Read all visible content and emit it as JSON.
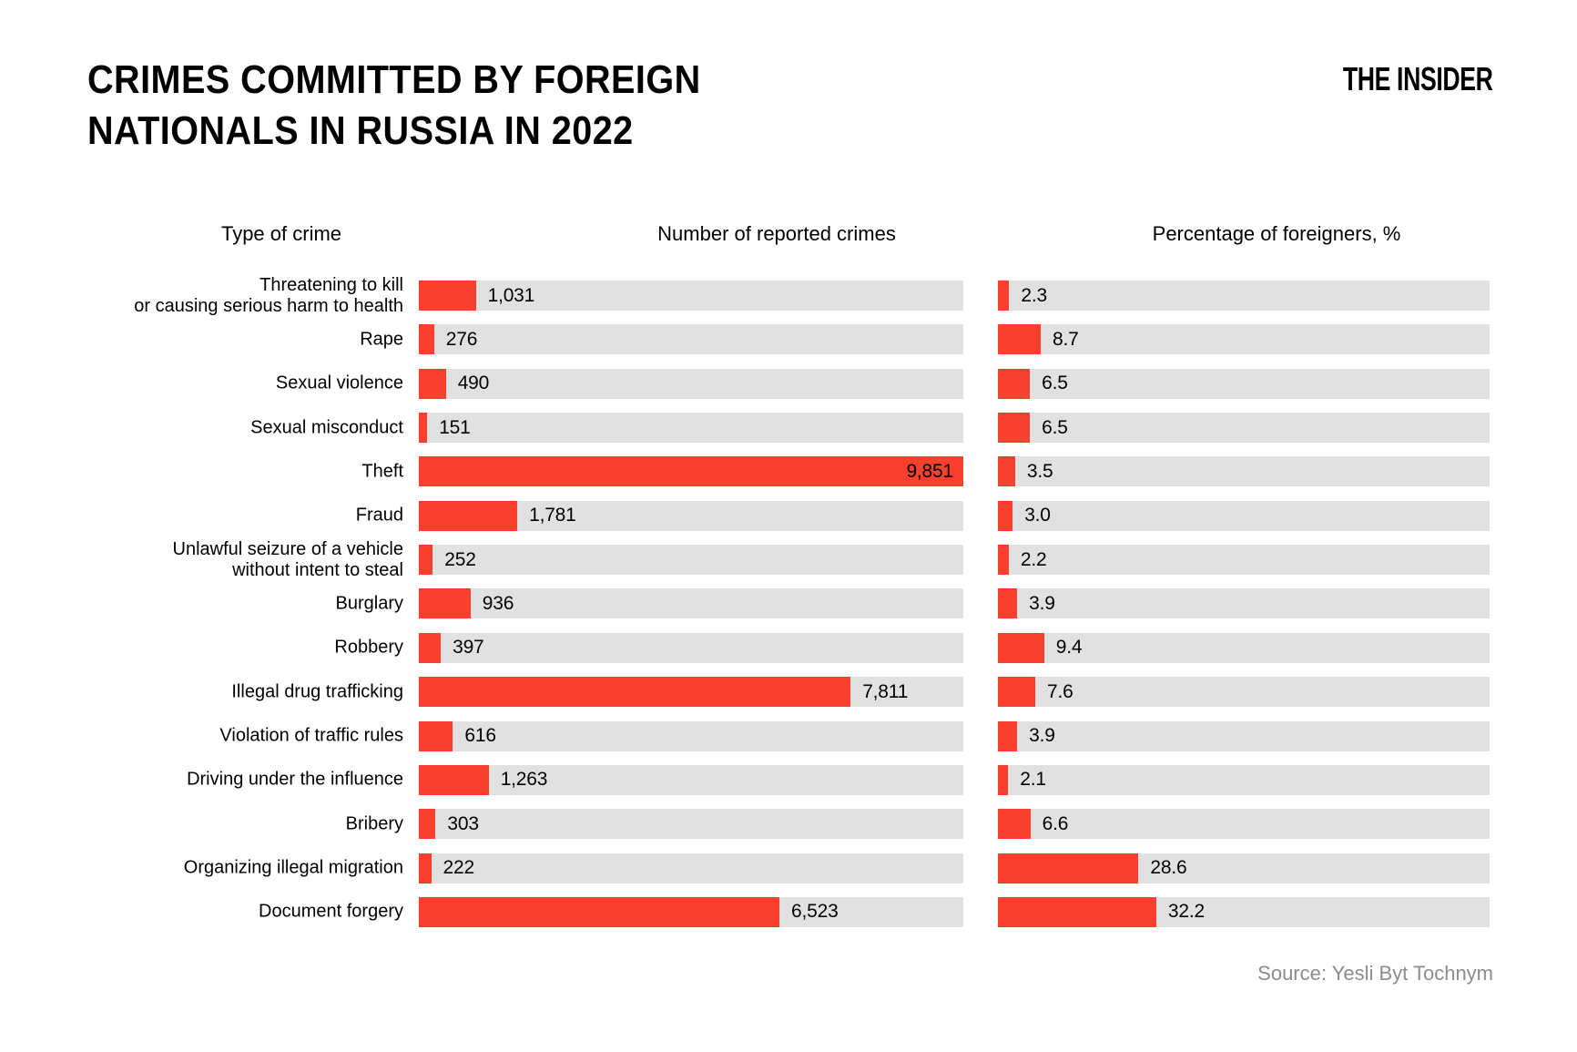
{
  "header": {
    "title_line1": "CRIMES COMMITTED BY FOREIGN",
    "title_line2": "NATIONALS IN RUSSIA IN 2022",
    "logo": "THE INSIDER"
  },
  "columns": {
    "crime_type": "Type of crime",
    "reported": "Number of reported crimes",
    "percentage": "Percentage of foreigners, %"
  },
  "source": "Source: Yesli Byt Tochnym",
  "colors": {
    "bar": "#F9402F",
    "track": "#E1E1E1",
    "text": "#000000",
    "source_text": "#8C8C8C"
  },
  "chart_data": {
    "type": "bar",
    "orientation": "horizontal",
    "title": "Crimes committed by foreign nationals in Russia in 2022",
    "grid": false,
    "legend": "none",
    "categories": [
      "Threatening to kill\nor causing serious harm to health",
      "Rape",
      "Sexual violence",
      "Sexual misconduct",
      "Theft",
      "Fraud",
      "Unlawful seizure of a vehicle\nwithout intent to steal",
      "Burglary",
      "Robbery",
      "Illegal drug trafficking",
      "Violation of traffic rules",
      "Driving under the influence",
      "Bribery",
      "Organizing illegal migration",
      "Document forgery"
    ],
    "series": [
      {
        "name": "Number of reported crimes",
        "axis_max": 9851,
        "values": [
          1031,
          276,
          490,
          151,
          9851,
          1781,
          252,
          936,
          397,
          7811,
          616,
          1263,
          303,
          222,
          6523
        ],
        "labels": [
          "1,031",
          "276",
          "490",
          "151",
          "9,851",
          "1,781",
          "252",
          "936",
          "397",
          "7,811",
          "616",
          "1,263",
          "303",
          "222",
          "6,523"
        ]
      },
      {
        "name": "Percentage of foreigners, %",
        "axis_max": 100,
        "values": [
          2.3,
          8.7,
          6.5,
          6.5,
          3.5,
          3.0,
          2.2,
          3.9,
          9.4,
          7.6,
          3.9,
          2.1,
          6.6,
          28.6,
          32.2
        ],
        "labels": [
          "2.3",
          "8.7",
          "6.5",
          "6.5",
          "3.5",
          "3.0",
          "2.2",
          "3.9",
          "9.4",
          "7.6",
          "3.9",
          "2.1",
          "6.6",
          "28.6",
          "32.2"
        ]
      }
    ]
  }
}
